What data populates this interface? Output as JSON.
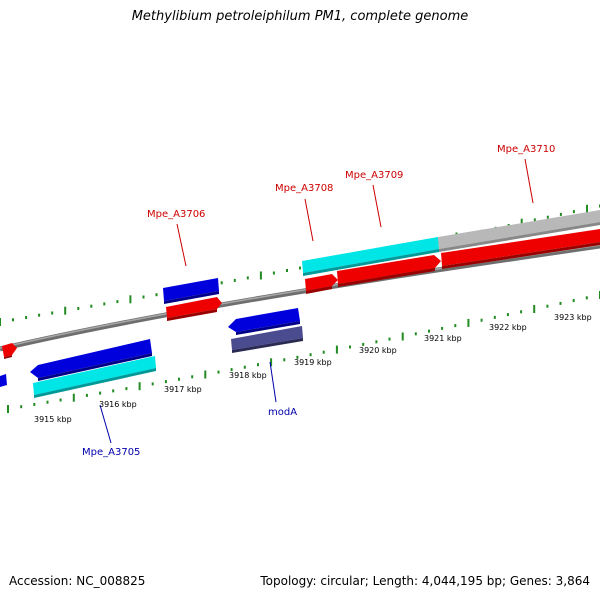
{
  "title": "Methylibium petroleiphilum PM1, complete genome",
  "footer": {
    "accession": "Accession: NC_008825",
    "summary": "Topology: circular; Length: 4,044,195 bp; Genes: 3,864"
  },
  "colors": {
    "backbone": "#808080",
    "tick": "#228b22",
    "label_forward": "#cc0000",
    "label_reverse": "#0000aa",
    "gene_blue": "#0000dd",
    "gene_red": "#ee0000",
    "gene_cyan": "#00e5e5",
    "gene_gray": "#b8b8b8",
    "gene_slate": "#4b4b8f"
  },
  "scale": {
    "kbp_ticks": [
      {
        "label": "3915 kbp"
      },
      {
        "label": "3916 kbp"
      },
      {
        "label": "3917 kbp"
      },
      {
        "label": "3918 kbp"
      },
      {
        "label": "3919 kbp"
      },
      {
        "label": "3920 kbp"
      },
      {
        "label": "3921 kbp"
      },
      {
        "label": "3922 kbp"
      },
      {
        "label": "3923 kbp"
      }
    ]
  },
  "gene_labels": [
    {
      "name": "Mpe_A3705",
      "strand": "reverse"
    },
    {
      "name": "Mpe_A3706",
      "strand": "forward"
    },
    {
      "name": "modA",
      "strand": "reverse"
    },
    {
      "name": "Mpe_A3708",
      "strand": "forward"
    },
    {
      "name": "Mpe_A3709",
      "strand": "forward"
    },
    {
      "name": "Mpe_A3710",
      "strand": "forward"
    }
  ]
}
